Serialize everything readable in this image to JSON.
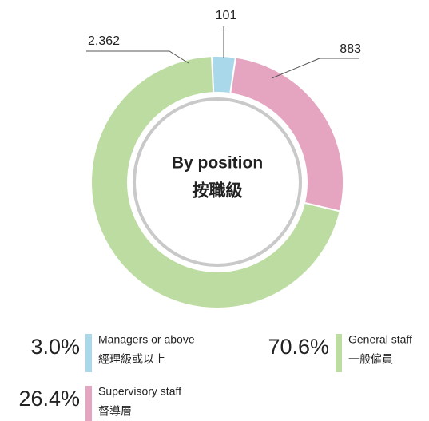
{
  "chart_data": {
    "type": "donut",
    "title": "By position",
    "title_zh": "按職級",
    "categories": [
      "Managers or above",
      "Supervisory staff",
      "General staff"
    ],
    "categories_zh": [
      "經理級或以上",
      "督導層",
      "一般僱員"
    ],
    "values": [
      101,
      883,
      2362
    ],
    "value_labels": [
      "101",
      "883",
      "2,362"
    ],
    "percentages": [
      3.0,
      26.4,
      70.6
    ],
    "percentage_labels": [
      "3.0%",
      "26.4%",
      "70.6%"
    ],
    "colors": [
      "#a9d8ea",
      "#e5a4c0",
      "#bddca2"
    ]
  }
}
